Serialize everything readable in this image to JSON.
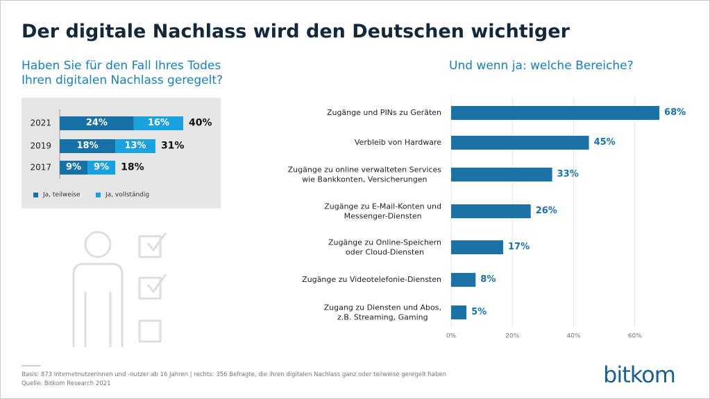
{
  "title": "Der digitale Nachlass wird den Deutschen wichtiger",
  "chart_data": [
    {
      "type": "stacked-bar",
      "title": "Haben Sie für den Fall Ihres Todes\nIhren digitalen Nachlass geregelt?",
      "categories": [
        "2021",
        "2019",
        "2017"
      ],
      "series": [
        {
          "name": "Ja, teilweise",
          "color": "#1770a6",
          "values": [
            24,
            18,
            9
          ],
          "value_labels": [
            "24%",
            "18%",
            "9%"
          ]
        },
        {
          "name": "Ja, vollständig",
          "color": "#1ba1dd",
          "values": [
            16,
            13,
            9
          ],
          "value_labels": [
            "16%",
            "13%",
            "9%"
          ]
        }
      ],
      "totals": [
        40,
        31,
        18
      ],
      "total_labels": [
        "40%",
        "31%",
        "18%"
      ]
    },
    {
      "type": "bar",
      "title": "Und wenn ja: welche Bereiche?",
      "categories": [
        "Zugänge und PINs zu Geräten",
        "Verbleib von Hardware",
        "Zugänge zu online verwalteten Services\nwie Bankkonten, Versicherungen",
        "Zugänge zu E-Mail-Konten und\nMessenger-Diensten",
        "Zugänge zu Online-Speichern\noder Cloud-Diensten",
        "Zugänge zu Videotelefonie-Diensten",
        "Zugang zu Diensten und Abos,\nz.B. Streaming, Gaming"
      ],
      "values": [
        68,
        45,
        33,
        26,
        17,
        8,
        5
      ],
      "value_labels": [
        "68%",
        "45%",
        "33%",
        "26%",
        "17%",
        "8%",
        "5%"
      ],
      "color": "#1a72a6",
      "xlim": [
        0,
        80
      ],
      "xticks": [
        {
          "value": 0,
          "label": "0%"
        },
        {
          "value": 20,
          "label": "20%"
        },
        {
          "value": 40,
          "label": "40%"
        },
        {
          "value": 60,
          "label": "60%"
        }
      ],
      "grid": true
    }
  ],
  "footnote": [
    "Basis: 873 Internetnutzerinnen und -nutzer ab 16 Jahren | rechts: 356 Befragte, die ihren digitalen Nachlass ganz oder teilweise geregelt haben",
    "Quelle: Bitkom Research 2021"
  ],
  "logo": "bitkom"
}
